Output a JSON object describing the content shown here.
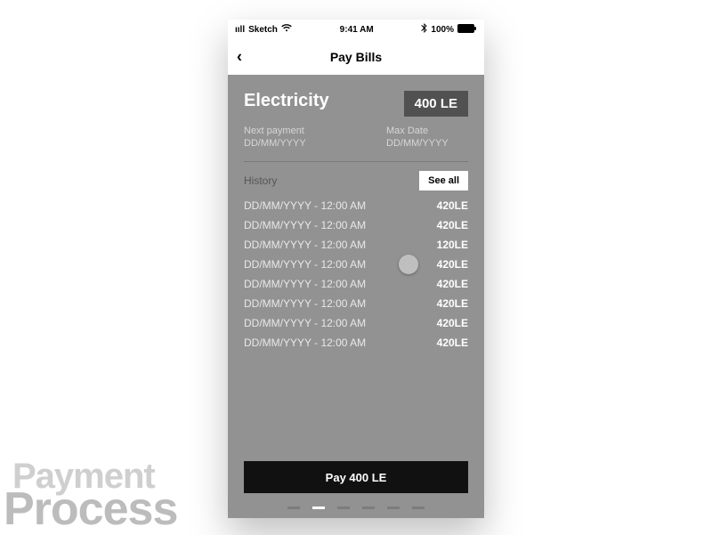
{
  "statusbar": {
    "carrier": "Sketch",
    "time": "9:41 AM",
    "battery": "100%"
  },
  "nav": {
    "title": "Pay Bills"
  },
  "bill": {
    "category": "Electricity",
    "amount": "400 LE",
    "next_label": "Next payment",
    "next_value": "DD/MM/YYYY",
    "max_label": "Max Date",
    "max_value": "DD/MM/YYYY"
  },
  "history": {
    "label": "History",
    "see_all": "See all",
    "rows": [
      {
        "dt": "DD/MM/YYYY - 12:00 AM",
        "amt": "420LE"
      },
      {
        "dt": "DD/MM/YYYY - 12:00 AM",
        "amt": "420LE"
      },
      {
        "dt": "DD/MM/YYYY - 12:00 AM",
        "amt": "120LE"
      },
      {
        "dt": "DD/MM/YYYY - 12:00 AM",
        "amt": "420LE"
      },
      {
        "dt": "DD/MM/YYYY - 12:00 AM",
        "amt": "420LE"
      },
      {
        "dt": "DD/MM/YYYY - 12:00 AM",
        "amt": "420LE"
      },
      {
        "dt": "DD/MM/YYYY - 12:00 AM",
        "amt": "420LE"
      },
      {
        "dt": "DD/MM/YYYY - 12:00 AM",
        "amt": "420LE"
      }
    ]
  },
  "cta": {
    "label": "Pay 400 LE"
  },
  "pager": {
    "count": 6,
    "active": 1
  },
  "watermark": {
    "l1": "Payment",
    "l2": "Process"
  },
  "colors": {
    "phone_bg": "#929292",
    "amount_bg": "#515151",
    "pay_bg": "#111111",
    "dot": "#7c7c7c",
    "dot_active": "#ffffff"
  }
}
